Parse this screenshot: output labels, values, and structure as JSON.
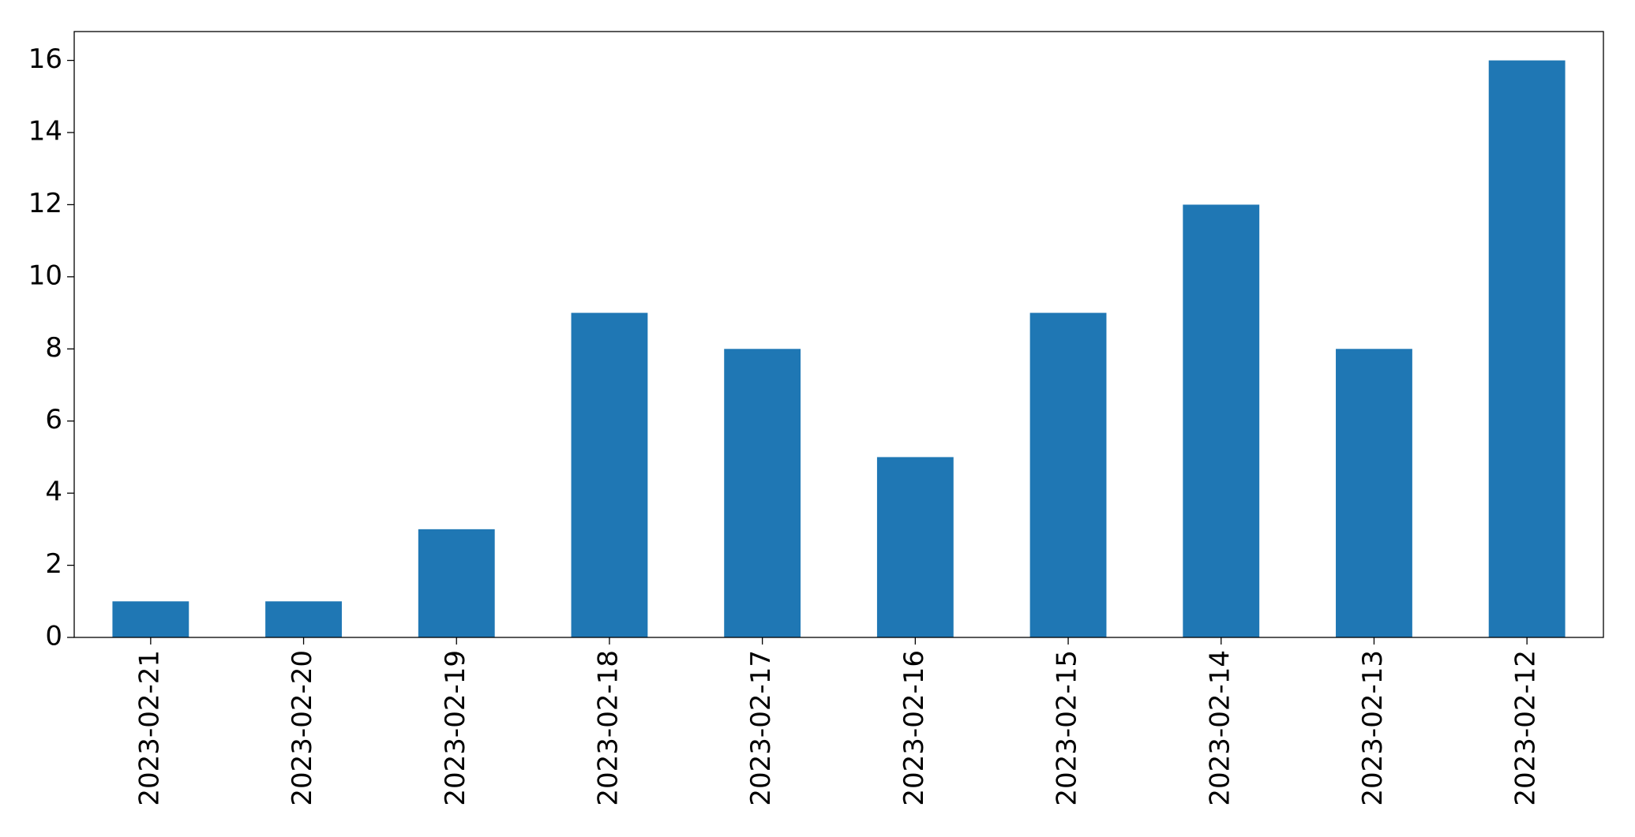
{
  "chart_data": {
    "type": "bar",
    "categories": [
      "2023-02-21",
      "2023-02-20",
      "2023-02-19",
      "2023-02-18",
      "2023-02-17",
      "2023-02-16",
      "2023-02-15",
      "2023-02-14",
      "2023-02-13",
      "2023-02-12"
    ],
    "values": [
      1,
      1,
      3,
      9,
      8,
      5,
      9,
      12,
      8,
      16
    ],
    "color": "#1f77b4",
    "ylim": [
      0,
      16.8
    ],
    "yticks": [
      0,
      2,
      4,
      6,
      8,
      10,
      12,
      14,
      16
    ],
    "grid": false
  }
}
